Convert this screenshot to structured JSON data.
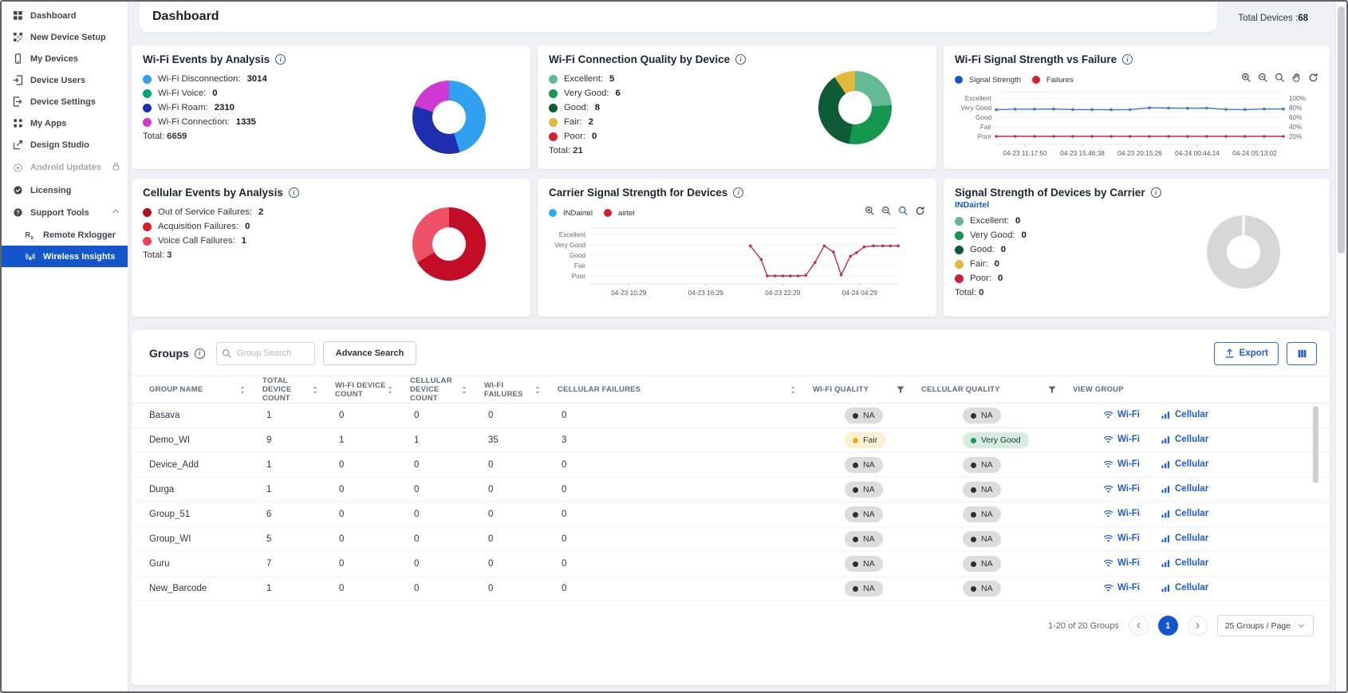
{
  "window": {
    "total_devices_label": "Total Devices :",
    "total_devices_value": "68"
  },
  "header": {
    "title": "Dashboard"
  },
  "sidebar": {
    "items": [
      {
        "label": "Dashboard",
        "icon": "dashboard"
      },
      {
        "label": "New Device Setup",
        "icon": "device-setup"
      },
      {
        "label": "My Devices",
        "icon": "devices"
      },
      {
        "label": "Device Users",
        "icon": "device-users"
      },
      {
        "label": "Device Settings",
        "icon": "device-settings"
      },
      {
        "label": "My Apps",
        "icon": "apps"
      },
      {
        "label": "Design Studio",
        "icon": "design-studio"
      },
      {
        "label": "Android Updates",
        "icon": "android-updates",
        "disabled": true,
        "locked": true
      },
      {
        "label": "Licensing",
        "icon": "licensing"
      },
      {
        "label": "Support Tools",
        "icon": "support-tools",
        "expanded": true
      },
      {
        "label": "Remote Rxlogger",
        "icon": "rx",
        "child": true
      },
      {
        "label": "Wireless Insights",
        "icon": "wireless",
        "child": true,
        "active": true
      }
    ]
  },
  "cards": {
    "wifi_events": {
      "title": "Wi-Fi Events by Analysis",
      "legend": [
        {
          "label": "Wi-Fi Disconnection:",
          "value": "3014",
          "color": "#2f9ff0"
        },
        {
          "label": "Wi-Fi Voice:",
          "value": "0",
          "color": "#00a678"
        },
        {
          "label": "Wi-Fi Roam:",
          "value": "2310",
          "color": "#1d2fae"
        },
        {
          "label": "Wi-Fi Connection:",
          "value": "1335",
          "color": "#ce38d3"
        }
      ],
      "total_label": "Total:",
      "total_value": "6659",
      "donut": {
        "segments": [
          {
            "color": "#2f9ff0",
            "from": 0,
            "to": 163
          },
          {
            "color": "#1d2fae",
            "from": 163,
            "to": 288
          },
          {
            "color": "#ce38d3",
            "from": 288,
            "to": 360
          }
        ]
      }
    },
    "wifi_quality": {
      "title": "Wi-Fi Connection Quality by Device",
      "legend": [
        {
          "label": "Excellent:",
          "value": "5",
          "color": "#63ba92"
        },
        {
          "label": "Very Good:",
          "value": "6",
          "color": "#15974f"
        },
        {
          "label": "Good:",
          "value": "8",
          "color": "#0d5c35"
        },
        {
          "label": "Fair:",
          "value": "2",
          "color": "#e4b83c"
        },
        {
          "label": "Poor:",
          "value": "0",
          "color": "#d41f32"
        }
      ],
      "total_label": "Total:",
      "total_value": "21",
      "donut": {
        "segments": [
          {
            "color": "#63ba92",
            "from": 0,
            "to": 86
          },
          {
            "color": "#15974f",
            "from": 86,
            "to": 189
          },
          {
            "color": "#0d5c35",
            "from": 189,
            "to": 326
          },
          {
            "color": "#e4b83c",
            "from": 326,
            "to": 360
          }
        ]
      }
    },
    "wifi_signal": {
      "title": "Wi-Fi Signal Strength vs Failure",
      "toolbar": [
        {
          "icon": "zoom-in"
        },
        {
          "icon": "zoom-out"
        },
        {
          "icon": "zoom-box"
        },
        {
          "icon": "pan"
        },
        {
          "icon": "refresh"
        }
      ],
      "chart_data": {
        "type": "line",
        "legend": [
          {
            "label": "Signal Strength",
            "color": "#1355cd"
          },
          {
            "label": "Failures",
            "color": "#d41f32"
          }
        ],
        "y_labels": [
          "Excellent",
          "Very Good",
          "Good",
          "Fair",
          "Poor"
        ],
        "y_labels_right": [
          "100%",
          "80%",
          "60%",
          "40%",
          "20%"
        ],
        "x_labels": [
          "04-23 11:17:50",
          "04-23 15:46:38",
          "04-23 20:15:26",
          "04-24 00:44:14",
          "04-24 05:13:02"
        ],
        "series": [
          {
            "name": "Signal Strength",
            "color": "#3e7cb8",
            "points": [
              [
                0,
                3.78
              ],
              [
                0.066,
                3.84
              ],
              [
                0.133,
                3.84
              ],
              [
                0.2,
                3.86
              ],
              [
                0.266,
                3.8
              ],
              [
                0.333,
                3.8
              ],
              [
                0.4,
                3.78
              ],
              [
                0.466,
                3.8
              ],
              [
                0.533,
                3.98
              ],
              [
                0.6,
                3.96
              ],
              [
                0.666,
                3.94
              ],
              [
                0.733,
                3.96
              ],
              [
                0.8,
                3.82
              ],
              [
                0.866,
                3.8
              ],
              [
                0.933,
                3.86
              ],
              [
                1,
                3.86
              ]
            ]
          },
          {
            "name": "Failures",
            "color": "#c23048",
            "points": [
              [
                0,
                1
              ],
              [
                0.066,
                1
              ],
              [
                0.133,
                1
              ],
              [
                0.2,
                1
              ],
              [
                0.266,
                1
              ],
              [
                0.333,
                1
              ],
              [
                0.4,
                1
              ],
              [
                0.466,
                1
              ],
              [
                0.533,
                1
              ],
              [
                0.6,
                1
              ],
              [
                0.666,
                1
              ],
              [
                0.733,
                1
              ],
              [
                0.8,
                1
              ],
              [
                0.866,
                1
              ],
              [
                0.933,
                1
              ],
              [
                1,
                1
              ]
            ]
          }
        ]
      }
    },
    "cellular_events": {
      "title": "Cellular Events by Analysis",
      "legend": [
        {
          "label": "Out of Service Failures:",
          "value": "2",
          "color": "#b01020"
        },
        {
          "label": "Acquisition Failures:",
          "value": "0",
          "color": "#dd1b2b"
        },
        {
          "label": "Voice Call Failures:",
          "value": "1",
          "color": "#ef4155"
        }
      ],
      "total_label": "Total:",
      "total_value": "3",
      "donut": {
        "segments": [
          {
            "color": "#c30d26",
            "from": 0,
            "to": 240
          },
          {
            "color": "#ee5065",
            "from": 240,
            "to": 360
          }
        ]
      }
    },
    "carrier_signal": {
      "title": "Carrier Signal Strength for Devices",
      "toolbar": [
        {
          "icon": "zoom-in"
        },
        {
          "icon": "zoom-out"
        },
        {
          "icon": "zoom-box",
          "active": true
        },
        {
          "icon": "refresh"
        }
      ],
      "chart_data": {
        "type": "line",
        "legend": [
          {
            "label": "INDairtel",
            "color": "#22b2e8"
          },
          {
            "label": "airtel",
            "color": "#d41f32"
          }
        ],
        "y_labels": [
          "Excellent",
          "Very Good",
          "Good",
          "Fair",
          "Poor"
        ],
        "x_labels": [
          "04-23 10:29",
          "04-23 16:29",
          "04-23 22:29",
          "04-24 04:29"
        ],
        "series": [
          {
            "name": "INDairtel",
            "color": "#22b2e8",
            "points": []
          },
          {
            "name": "airtel",
            "color": "#bd3048",
            "points": [
              [
                0.52,
                3.9
              ],
              [
                0.555,
                2.6
              ],
              [
                0.575,
                1.0
              ],
              [
                0.6,
                1.0
              ],
              [
                0.625,
                1.0
              ],
              [
                0.65,
                1.0
              ],
              [
                0.675,
                1.0
              ],
              [
                0.7,
                1.05
              ],
              [
                0.73,
                2.3
              ],
              [
                0.76,
                3.9
              ],
              [
                0.79,
                3.3
              ],
              [
                0.815,
                1.1
              ],
              [
                0.845,
                2.9
              ],
              [
                0.865,
                3.25
              ],
              [
                0.89,
                3.8
              ],
              [
                0.92,
                3.9
              ],
              [
                0.95,
                3.9
              ],
              [
                0.975,
                3.9
              ],
              [
                1,
                3.9
              ]
            ]
          }
        ]
      }
    },
    "carrier_strength": {
      "title": "Signal Strength of Devices by Carrier",
      "subtitle": "INDairtel",
      "legend": [
        {
          "label": "Excellent:",
          "value": "0",
          "color": "#63ba92"
        },
        {
          "label": "Very Good:",
          "value": "0",
          "color": "#15974f"
        },
        {
          "label": "Good:",
          "value": "0",
          "color": "#0d5c35"
        },
        {
          "label": "Fair:",
          "value": "0",
          "color": "#e4b83c"
        },
        {
          "label": "Poor:",
          "value": "0",
          "color": "#d41f32"
        }
      ],
      "total_label": "Total:",
      "total_value": "0",
      "donut": {
        "notch": true,
        "segments": [
          {
            "color": "#d7d7d7",
            "from": 0,
            "to": 360
          }
        ]
      }
    }
  },
  "groups": {
    "title": "Groups",
    "search_placeholder": "Group Search",
    "advance_label": "Advance Search",
    "export_label": "Export",
    "table": {
      "columns": [
        {
          "label": "GROUP NAME",
          "icon": "sort"
        },
        {
          "label": "TOTAL DEVICE COUNT",
          "icon": "sort"
        },
        {
          "label": "WI-FI DEVICE COUNT",
          "icon": "sort"
        },
        {
          "label": "CELLULAR DEVICE COUNT",
          "icon": "sort"
        },
        {
          "label": "WI-FI FAILURES",
          "icon": "sort"
        },
        {
          "label": "CELLULAR FAILURES",
          "icon": "sort"
        },
        {
          "label": "WI-FI QUALITY",
          "icon": "funnel"
        },
        {
          "label": "CELLULAR QUALITY",
          "icon": "funnel"
        },
        {
          "label": "VIEW GROUP",
          "icon": null
        }
      ],
      "view_links": {
        "wifi": "Wi-Fi",
        "cellular": "Cellular"
      },
      "rows": [
        {
          "name": "Basava",
          "values": [
            "1",
            "0",
            "0",
            "0",
            "0"
          ],
          "wifi_quality": "NA",
          "cellular_quality": "NA"
        },
        {
          "name": "Demo_WI",
          "values": [
            "9",
            "1",
            "1",
            "35",
            "3"
          ],
          "wifi_quality": "Fair",
          "cellular_quality": "Very Good"
        },
        {
          "name": "Device_Add",
          "values": [
            "1",
            "0",
            "0",
            "0",
            "0"
          ],
          "wifi_quality": "NA",
          "cellular_quality": "NA"
        },
        {
          "name": "Durga",
          "values": [
            "1",
            "0",
            "0",
            "0",
            "0"
          ],
          "wifi_quality": "NA",
          "cellular_quality": "NA"
        },
        {
          "name": "Group_51",
          "values": [
            "6",
            "0",
            "0",
            "0",
            "0"
          ],
          "wifi_quality": "NA",
          "cellular_quality": "NA"
        },
        {
          "name": "Group_WI",
          "values": [
            "5",
            "0",
            "0",
            "0",
            "0"
          ],
          "wifi_quality": "NA",
          "cellular_quality": "NA"
        },
        {
          "name": "Guru",
          "values": [
            "7",
            "0",
            "0",
            "0",
            "0"
          ],
          "wifi_quality": "NA",
          "cellular_quality": "NA"
        },
        {
          "name": "New_Barcode",
          "values": [
            "1",
            "0",
            "0",
            "0",
            "0"
          ],
          "wifi_quality": "NA",
          "cellular_quality": "NA"
        }
      ]
    },
    "pagination": {
      "range": "1-20 of 20 Groups",
      "page": "1",
      "per_page": "25 Groups / Page"
    }
  }
}
